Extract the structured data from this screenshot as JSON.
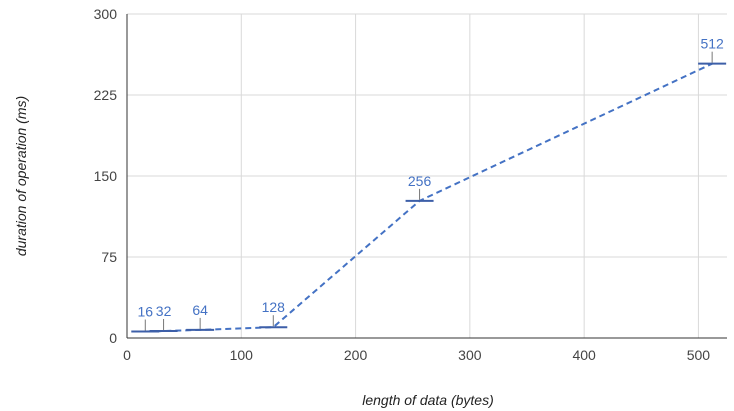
{
  "chart_data": {
    "type": "line",
    "title": "",
    "xlabel": "length of data (bytes)",
    "ylabel": "duration of operation (ms)",
    "xlim": [
      0,
      525
    ],
    "ylim": [
      0,
      300
    ],
    "x_ticks": [
      0,
      100,
      200,
      300,
      400,
      500
    ],
    "y_ticks": [
      0,
      75,
      150,
      225,
      300
    ],
    "grid": true,
    "legend": "none",
    "series": [
      {
        "color": "#4472c4",
        "line_style": "dashed",
        "points": [
          {
            "x": 16,
            "y": 6,
            "label": "16"
          },
          {
            "x": 32,
            "y": 6.5,
            "label": "32"
          },
          {
            "x": 64,
            "y": 7.5,
            "label": "64"
          },
          {
            "x": 128,
            "y": 10,
            "label": "128"
          },
          {
            "x": 256,
            "y": 127,
            "label": "256"
          },
          {
            "x": 512,
            "y": 254,
            "label": "512"
          }
        ]
      }
    ]
  }
}
